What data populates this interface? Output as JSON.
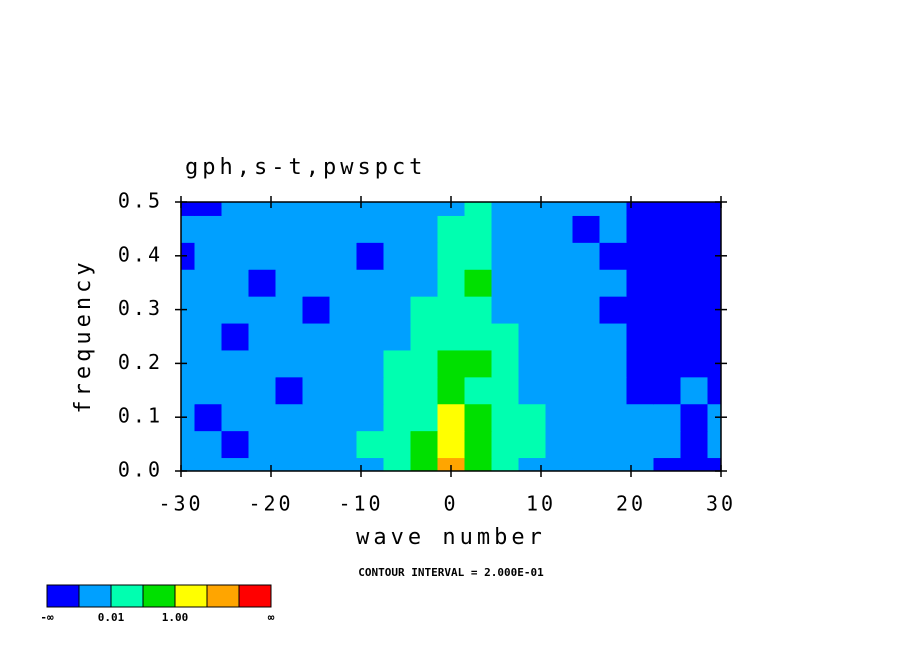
{
  "chart_data": {
    "type": "contour",
    "title": "gph,s-t,pwspct",
    "xlabel": "wave number",
    "ylabel": "frequency",
    "annotation": "CONTOUR INTERVAL = 2.000E-01",
    "xlim": [
      -30,
      30
    ],
    "ylim": [
      0,
      0.5
    ],
    "xticks": [
      -30,
      -20,
      -10,
      0,
      10,
      20,
      30
    ],
    "yticks": [
      {
        "value": 0,
        "label": "0.0"
      },
      0.1,
      0.2,
      0.3,
      0.4,
      0.5
    ],
    "colors": [
      "#0000ff",
      "#00a0ff",
      "#00ffb0",
      "#00e000",
      "#ffff00",
      "#ffa500",
      "#ff0000"
    ],
    "colorbar_labels": [
      "-∞",
      "0.01",
      "1.00",
      "∞"
    ],
    "x": [
      -30,
      -27,
      -24,
      -21,
      -18,
      -15,
      -12,
      -9,
      -6,
      -3,
      0,
      3,
      6,
      9,
      12,
      15,
      18,
      21,
      24,
      27,
      30
    ],
    "y": [
      0,
      0.05,
      0.1,
      0.15,
      0.2,
      0.25,
      0.3,
      0.35,
      0.4,
      0.45,
      0.5
    ],
    "z": [
      [
        1,
        1,
        1,
        1,
        1,
        1,
        1,
        1,
        2,
        3,
        5,
        3,
        2,
        1,
        1,
        1,
        1,
        1,
        0,
        0,
        0
      ],
      [
        1,
        1,
        0,
        1,
        1,
        1,
        1,
        2,
        2,
        3,
        4,
        3,
        2,
        2,
        1,
        1,
        1,
        1,
        1,
        0,
        1
      ],
      [
        1,
        0,
        1,
        1,
        1,
        1,
        1,
        1,
        2,
        2,
        4,
        3,
        2,
        2,
        1,
        1,
        1,
        1,
        1,
        0,
        1
      ],
      [
        1,
        1,
        1,
        1,
        0,
        1,
        1,
        1,
        2,
        2,
        3,
        2,
        2,
        1,
        1,
        1,
        1,
        0,
        0,
        1,
        0
      ],
      [
        1,
        1,
        1,
        1,
        1,
        1,
        1,
        1,
        2,
        2,
        3,
        3,
        2,
        1,
        1,
        1,
        1,
        0,
        0,
        0,
        0
      ],
      [
        1,
        1,
        0,
        1,
        1,
        1,
        1,
        1,
        1,
        2,
        2,
        2,
        2,
        1,
        1,
        1,
        1,
        0,
        0,
        0,
        0
      ],
      [
        1,
        1,
        1,
        1,
        1,
        0,
        1,
        1,
        1,
        2,
        2,
        2,
        1,
        1,
        1,
        1,
        0,
        0,
        0,
        0,
        0
      ],
      [
        1,
        1,
        1,
        0,
        1,
        1,
        1,
        1,
        1,
        1,
        2,
        3,
        1,
        1,
        1,
        1,
        1,
        0,
        0,
        0,
        0
      ],
      [
        0,
        1,
        1,
        1,
        1,
        1,
        1,
        0,
        1,
        1,
        2,
        2,
        1,
        1,
        1,
        1,
        0,
        0,
        0,
        0,
        0
      ],
      [
        1,
        1,
        1,
        1,
        1,
        1,
        1,
        1,
        1,
        1,
        2,
        2,
        1,
        1,
        1,
        0,
        1,
        0,
        0,
        0,
        0
      ],
      [
        0,
        0,
        1,
        1,
        1,
        1,
        1,
        1,
        1,
        1,
        1,
        2,
        1,
        1,
        1,
        1,
        1,
        0,
        0,
        0,
        0
      ]
    ]
  }
}
